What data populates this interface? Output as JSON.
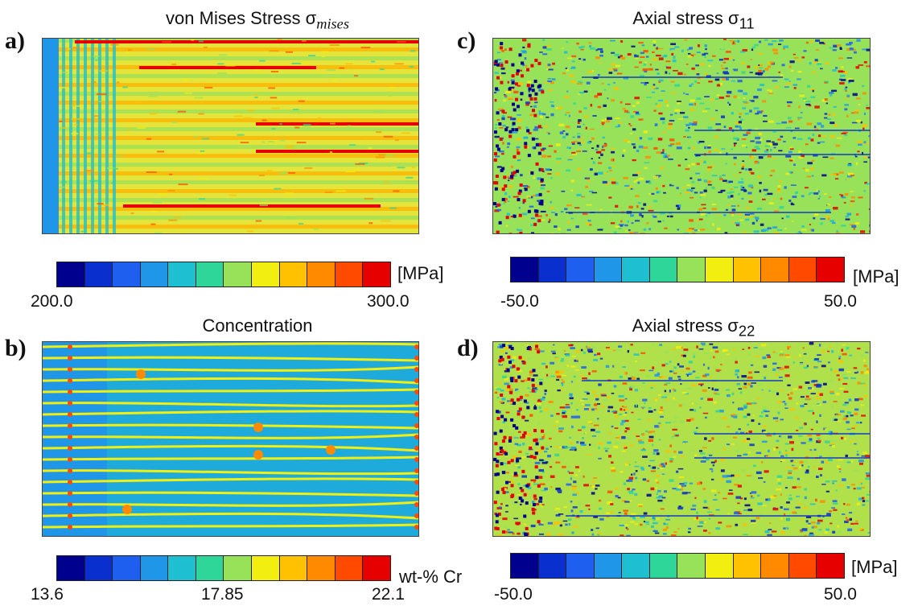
{
  "panels": {
    "a": {
      "letter": "a)",
      "title_text": "von Mises Stress σ",
      "title_sub": "mises",
      "unit": "[MPa]",
      "ticks": [
        "200.0",
        "300.0"
      ]
    },
    "b": {
      "letter": "b)",
      "title_text": "Concentration",
      "unit": "wt-% Cr",
      "ticks": [
        "13.6",
        "17.85",
        "22.1"
      ]
    },
    "c": {
      "letter": "c)",
      "title_text": "Axial stress σ",
      "title_sub": "11",
      "unit": "[MPa]",
      "ticks": [
        "-50.0",
        "50.0"
      ]
    },
    "d": {
      "letter": "d)",
      "title_text": "Axial stress σ",
      "title_sub": "22",
      "unit": "[MPa]",
      "ticks": [
        "-50.0",
        "50.0"
      ]
    }
  },
  "colormap": [
    "#00008f",
    "#0a2fcf",
    "#1f5ff0",
    "#1f96e8",
    "#1ebfd0",
    "#2ed69a",
    "#98e25a",
    "#f2ee10",
    "#ffc100",
    "#ff8a00",
    "#ff4a00",
    "#e60000"
  ]
}
